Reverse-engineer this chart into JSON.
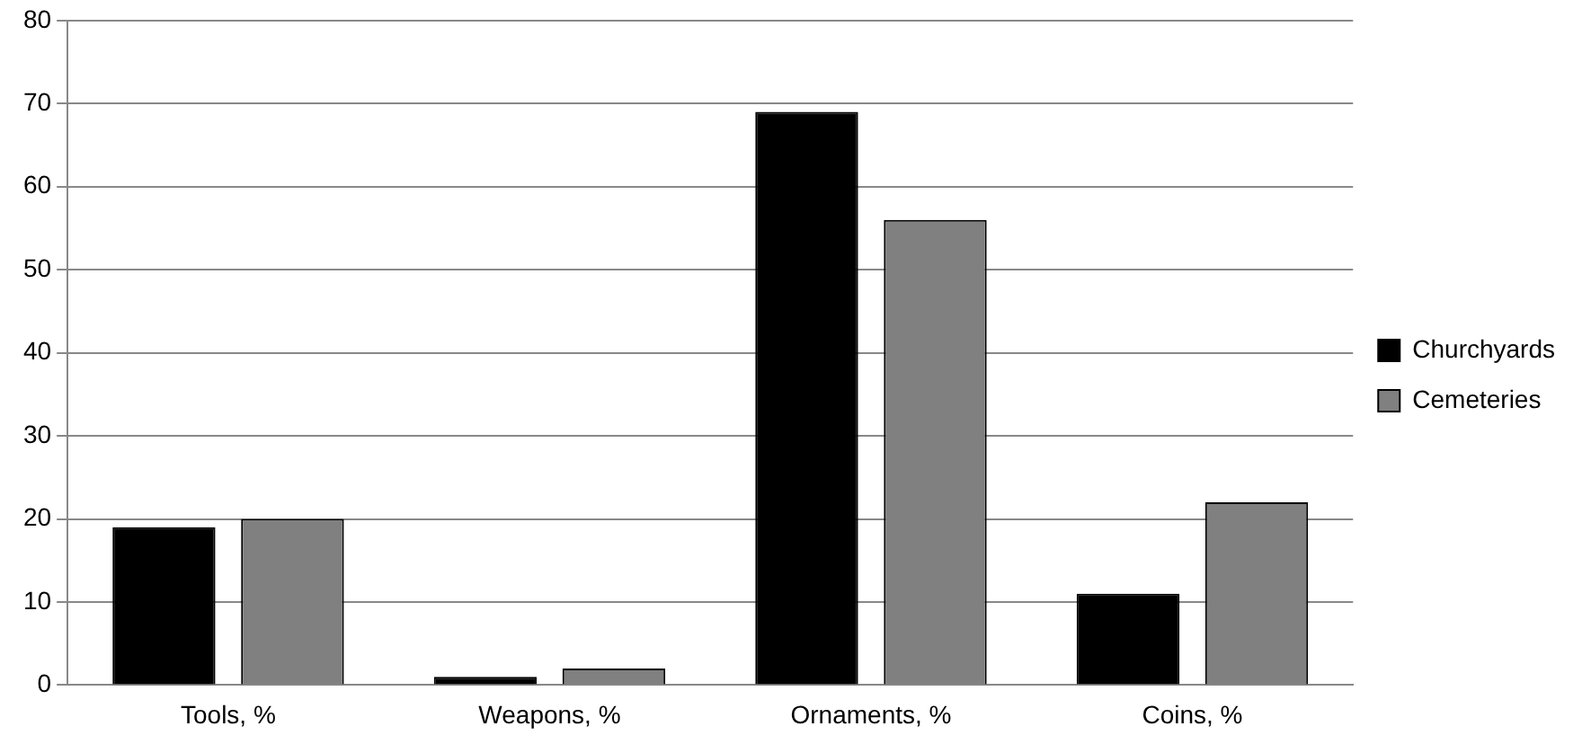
{
  "chart_data": {
    "type": "bar",
    "categories": [
      "Tools, %",
      "Weapons, %",
      "Ornaments, %",
      "Coins, %"
    ],
    "series": [
      {
        "name": "Churchyards",
        "color": "#000000",
        "values": [
          19,
          1,
          69,
          11
        ]
      },
      {
        "name": "Cemeteries",
        "color": "#808080",
        "values": [
          20,
          2,
          56,
          22
        ]
      }
    ],
    "ylim": [
      0,
      80
    ],
    "yticks": [
      0,
      10,
      20,
      30,
      40,
      50,
      60,
      70,
      80
    ],
    "grid": "y",
    "legend": "right"
  }
}
